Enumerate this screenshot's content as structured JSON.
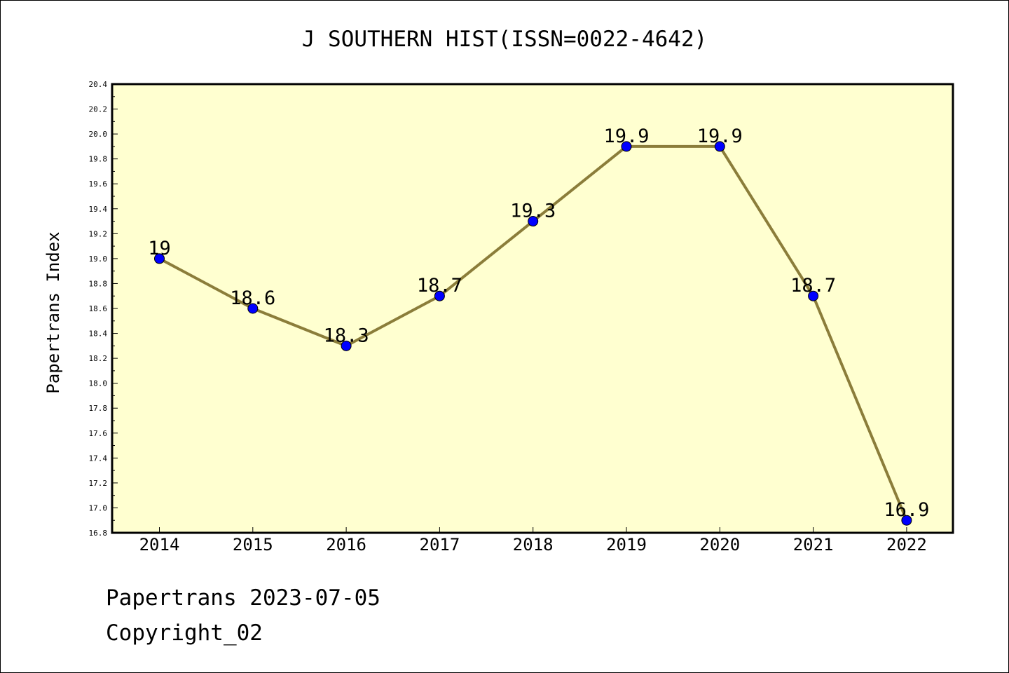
{
  "chart_data": {
    "type": "line",
    "title": "J SOUTHERN HIST(ISSN=0022-4642)",
    "xlabel": "",
    "ylabel": "Papertrans Index",
    "x": [
      "2014",
      "2015",
      "2016",
      "2017",
      "2018",
      "2019",
      "2020",
      "2021",
      "2022"
    ],
    "values": [
      19,
      18.6,
      18.3,
      18.7,
      19.3,
      19.9,
      19.9,
      18.7,
      16.9
    ],
    "data_labels": [
      "19",
      "18.6",
      "18.3",
      "18.7",
      "19.3",
      "19.9",
      "19.9",
      "18.7",
      "16.9"
    ],
    "ylim": [
      16.8,
      20.4
    ],
    "yticks": [
      "16.8",
      "17.0",
      "17.2",
      "17.4",
      "17.6",
      "17.8",
      "18.0",
      "18.2",
      "18.4",
      "18.6",
      "18.8",
      "19.0",
      "19.2",
      "19.4",
      "19.6",
      "19.8",
      "20.0",
      "20.2",
      "20.4"
    ],
    "grid": false,
    "colors": {
      "line": "#8b7d3a",
      "marker": "#0000ff",
      "plot_background": "#ffffd0"
    }
  },
  "footer": {
    "date_text": "Papertrans 2023-07-05",
    "copyright_text": "Copyright_02"
  }
}
